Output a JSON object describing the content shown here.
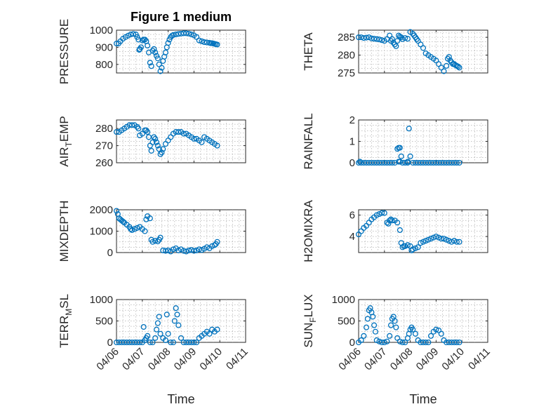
{
  "figure": {
    "title": "Figure 1 medium"
  },
  "chart_data": [
    {
      "type": "scatter",
      "ylabel": "PRESSURE",
      "title": "Figure 1 medium",
      "xlabel": "",
      "xlim": [
        0,
        5
      ],
      "ylim": [
        750,
        1000
      ],
      "yticks": [
        800,
        900,
        1000
      ],
      "xticks": [
        "04/06",
        "04/07",
        "04/08",
        "04/09",
        "04/10",
        "04/11"
      ],
      "show_xticklabels": false,
      "grid": true,
      "color": "#0072BD",
      "x": [
        0.0,
        0.08,
        0.15,
        0.25,
        0.35,
        0.45,
        0.55,
        0.65,
        0.75,
        0.8,
        0.85,
        0.88,
        0.9,
        0.95,
        1.0,
        1.05,
        1.1,
        1.15,
        1.2,
        1.25,
        1.3,
        1.35,
        1.4,
        1.45,
        1.5,
        1.55,
        1.6,
        1.65,
        1.7,
        1.75,
        1.8,
        1.85,
        1.9,
        1.95,
        2.0,
        2.05,
        2.1,
        2.15,
        2.2,
        2.3,
        2.4,
        2.5,
        2.6,
        2.7,
        2.8,
        2.9,
        3.0,
        3.1,
        3.2,
        3.3,
        3.4,
        3.5,
        3.6,
        3.65,
        3.7,
        3.75,
        3.8,
        3.85,
        3.9
      ],
      "y": [
        922,
        922,
        935,
        950,
        960,
        968,
        975,
        978,
        975,
        960,
        945,
        885,
        890,
        900,
        940,
        945,
        945,
        935,
        910,
        870,
        810,
        790,
        880,
        890,
        870,
        850,
        835,
        800,
        760,
        780,
        820,
        845,
        870,
        900,
        925,
        945,
        960,
        968,
        972,
        975,
        978,
        980,
        982,
        982,
        980,
        975,
        970,
        960,
        940,
        935,
        930,
        928,
        926,
        924,
        924,
        922,
        920,
        918,
        916
      ]
    },
    {
      "type": "scatter",
      "ylabel": "THETA",
      "title": "",
      "xlabel": "",
      "xlim": [
        0,
        5
      ],
      "ylim": [
        275,
        287
      ],
      "yticks": [
        275,
        280,
        285
      ],
      "xticks": [
        "04/06",
        "04/07",
        "04/08",
        "04/09",
        "04/10",
        "04/11"
      ],
      "show_xticklabels": false,
      "grid": true,
      "color": "#0072BD",
      "x": [
        0.0,
        0.1,
        0.2,
        0.3,
        0.4,
        0.5,
        0.6,
        0.7,
        0.8,
        0.9,
        1.0,
        1.1,
        1.2,
        1.25,
        1.3,
        1.35,
        1.4,
        1.45,
        1.5,
        1.55,
        1.6,
        1.65,
        1.7,
        1.8,
        1.9,
        2.0,
        2.1,
        2.15,
        2.2,
        2.25,
        2.3,
        2.4,
        2.5,
        2.6,
        2.7,
        2.8,
        2.9,
        3.0,
        3.1,
        3.2,
        3.3,
        3.4,
        3.45,
        3.5,
        3.55,
        3.6,
        3.65,
        3.7,
        3.75,
        3.8,
        3.85,
        3.9
      ],
      "y": [
        285,
        285,
        284.8,
        284.9,
        285,
        284.7,
        284.6,
        284.5,
        284.4,
        284.2,
        284,
        284.5,
        285.5,
        284,
        284.5,
        283.5,
        283,
        282.5,
        284,
        285.5,
        285.2,
        285,
        284.5,
        284.8,
        284.6,
        286.5,
        286,
        285.5,
        285,
        284.5,
        284,
        283,
        282,
        280.5,
        280,
        279.5,
        279,
        278.5,
        277.5,
        276.5,
        275.5,
        277,
        279,
        279.5,
        278.5,
        278,
        277.5,
        277.5,
        277.2,
        277,
        276.8,
        276.5
      ]
    },
    {
      "type": "scatter",
      "ylabel": "AIR_TEMP",
      "title": "",
      "xlabel": "",
      "xlim": [
        0,
        5
      ],
      "ylim": [
        260,
        285
      ],
      "yticks": [
        260,
        270,
        280
      ],
      "xticks": [
        "04/06",
        "04/07",
        "04/08",
        "04/09",
        "04/10",
        "04/11"
      ],
      "show_xticklabels": false,
      "grid": true,
      "color": "#0072BD",
      "x": [
        0.0,
        0.1,
        0.2,
        0.3,
        0.4,
        0.5,
        0.6,
        0.7,
        0.8,
        0.85,
        0.9,
        1.0,
        1.1,
        1.15,
        1.2,
        1.25,
        1.3,
        1.35,
        1.4,
        1.45,
        1.5,
        1.55,
        1.6,
        1.65,
        1.7,
        1.75,
        1.8,
        1.9,
        2.0,
        2.1,
        2.2,
        2.3,
        2.4,
        2.5,
        2.6,
        2.7,
        2.8,
        2.9,
        3.0,
        3.1,
        3.2,
        3.3,
        3.4,
        3.5,
        3.6,
        3.7,
        3.8,
        3.9
      ],
      "y": [
        278,
        278,
        279,
        280,
        281,
        282,
        282,
        282,
        281,
        280,
        276,
        277,
        279,
        279,
        278,
        275,
        270,
        267,
        272,
        275,
        274,
        272,
        270,
        268,
        265,
        266,
        268,
        271,
        273,
        275,
        277,
        278,
        278,
        278,
        277,
        277,
        276,
        275,
        274,
        274,
        273,
        272,
        275,
        274,
        273,
        272,
        271,
        270
      ]
    },
    {
      "type": "scatter",
      "ylabel": "RAINFALL",
      "title": "",
      "xlabel": "",
      "xlim": [
        0,
        5
      ],
      "ylim": [
        0,
        2
      ],
      "yticks": [
        0,
        1,
        2
      ],
      "xticks": [
        "04/06",
        "04/07",
        "04/08",
        "04/09",
        "04/10",
        "04/11"
      ],
      "show_xticklabels": false,
      "grid": true,
      "color": "#0072BD",
      "x": [
        0.0,
        0.1,
        0.2,
        0.3,
        0.4,
        0.5,
        0.6,
        0.7,
        0.8,
        0.9,
        1.0,
        1.1,
        1.2,
        1.3,
        1.4,
        1.5,
        1.55,
        1.6,
        1.65,
        1.7,
        1.8,
        1.9,
        1.95,
        2.0,
        2.1,
        2.2,
        2.3,
        2.4,
        2.5,
        2.6,
        2.7,
        2.8,
        2.9,
        3.0,
        3.1,
        3.2,
        3.3,
        3.4,
        3.5,
        3.6,
        3.7,
        3.8,
        3.9,
        0.05,
        1.9,
        1.6,
        1.55
      ],
      "y": [
        0,
        0,
        0,
        0,
        0,
        0,
        0,
        0,
        0,
        0,
        0,
        0,
        0,
        0,
        0,
        0.65,
        0.7,
        0.7,
        0.3,
        0,
        0,
        0,
        1.6,
        0.3,
        0,
        0,
        0,
        0,
        0,
        0,
        0,
        0,
        0,
        0,
        0,
        0,
        0,
        0,
        0,
        0,
        0,
        0,
        0,
        0.05,
        0.05,
        0.05,
        0.05
      ]
    },
    {
      "type": "scatter",
      "ylabel": "MIXDEPTH",
      "title": "",
      "xlabel": "",
      "xlim": [
        0,
        5
      ],
      "ylim": [
        0,
        2000
      ],
      "yticks": [
        0,
        1000,
        2000
      ],
      "xticks": [
        "04/06",
        "04/07",
        "04/08",
        "04/09",
        "04/10",
        "04/11"
      ],
      "show_xticklabels": false,
      "grid": true,
      "color": "#0072BD",
      "x": [
        0.0,
        0.05,
        0.1,
        0.15,
        0.2,
        0.25,
        0.3,
        0.4,
        0.5,
        0.55,
        0.6,
        0.7,
        0.8,
        0.9,
        1.0,
        1.1,
        1.15,
        1.2,
        1.3,
        1.35,
        1.4,
        1.5,
        1.6,
        1.65,
        1.7,
        1.8,
        1.9,
        2.0,
        2.1,
        2.2,
        2.3,
        2.4,
        2.5,
        2.6,
        2.7,
        2.8,
        2.9,
        3.0,
        3.1,
        3.2,
        3.3,
        3.4,
        3.5,
        3.6,
        3.7,
        3.8,
        3.85,
        3.9
      ],
      "y": [
        1950,
        1800,
        1600,
        1550,
        1500,
        1450,
        1400,
        1300,
        1200,
        1100,
        1050,
        1100,
        1150,
        1200,
        1100,
        1000,
        1550,
        1700,
        1600,
        600,
        500,
        550,
        520,
        600,
        700,
        100,
        80,
        100,
        50,
        150,
        200,
        100,
        150,
        80,
        50,
        100,
        120,
        80,
        100,
        150,
        120,
        180,
        250,
        200,
        300,
        350,
        400,
        500
      ]
    },
    {
      "type": "scatter",
      "ylabel": "H2OMIXRA",
      "title": "",
      "xlabel": "",
      "xlim": [
        0,
        5
      ],
      "ylim": [
        2.5,
        6.5
      ],
      "yticks": [
        4,
        6
      ],
      "xticks": [
        "04/06",
        "04/07",
        "04/08",
        "04/09",
        "04/10",
        "04/11"
      ],
      "show_xticklabels": false,
      "grid": true,
      "color": "#0072BD",
      "x": [
        0.0,
        0.1,
        0.2,
        0.3,
        0.4,
        0.5,
        0.6,
        0.7,
        0.8,
        0.9,
        1.0,
        1.1,
        1.15,
        1.2,
        1.25,
        1.3,
        1.4,
        1.5,
        1.6,
        1.65,
        1.7,
        1.75,
        1.8,
        1.9,
        2.0,
        2.05,
        2.1,
        2.2,
        2.3,
        2.4,
        2.5,
        2.6,
        2.7,
        2.8,
        2.9,
        3.0,
        3.1,
        3.2,
        3.3,
        3.4,
        3.5,
        3.6,
        3.7,
        3.8,
        3.9
      ],
      "y": [
        4.2,
        4.5,
        4.8,
        5.0,
        5.3,
        5.6,
        5.8,
        6.0,
        6.1,
        6.2,
        6.2,
        5.3,
        5.2,
        5.5,
        5.6,
        5.5,
        5.5,
        5.3,
        4.6,
        3.4,
        3.0,
        3.1,
        3.1,
        3.2,
        3.1,
        2.7,
        2.8,
        2.9,
        3.0,
        3.4,
        3.5,
        3.6,
        3.7,
        3.8,
        3.9,
        4.0,
        3.9,
        3.8,
        3.8,
        3.7,
        3.6,
        3.5,
        3.6,
        3.5,
        3.5
      ]
    },
    {
      "type": "scatter",
      "ylabel": "TERR_MSL",
      "title": "",
      "xlabel": "Time",
      "xlim": [
        0,
        5
      ],
      "ylim": [
        0,
        1000
      ],
      "yticks": [
        0,
        500,
        1000
      ],
      "xticks": [
        "04/06",
        "04/07",
        "04/08",
        "04/09",
        "04/10",
        "04/11"
      ],
      "show_xticklabels": true,
      "grid": true,
      "color": "#0072BD",
      "x": [
        0.0,
        0.1,
        0.2,
        0.3,
        0.4,
        0.5,
        0.6,
        0.7,
        0.8,
        0.9,
        1.0,
        1.05,
        1.1,
        1.15,
        1.2,
        1.3,
        1.4,
        1.5,
        1.55,
        1.6,
        1.65,
        1.7,
        1.8,
        1.9,
        1.95,
        2.0,
        2.1,
        2.2,
        2.25,
        2.3,
        2.35,
        2.4,
        2.5,
        2.6,
        2.7,
        2.8,
        2.9,
        3.0,
        3.1,
        3.2,
        3.3,
        3.4,
        3.5,
        3.6,
        3.7,
        3.8,
        3.9
      ],
      "y": [
        0,
        0,
        0,
        0,
        0,
        0,
        0,
        0,
        0,
        0,
        0,
        360,
        50,
        100,
        150,
        0,
        0,
        100,
        300,
        450,
        600,
        200,
        100,
        50,
        650,
        200,
        0,
        0,
        500,
        800,
        650,
        400,
        100,
        0,
        0,
        0,
        0,
        0,
        0,
        100,
        150,
        200,
        250,
        200,
        300,
        250,
        300
      ]
    },
    {
      "type": "scatter",
      "ylabel": "SUN_FLUX",
      "title": "",
      "xlabel": "Time",
      "xlim": [
        0,
        5
      ],
      "ylim": [
        0,
        1000
      ],
      "yticks": [
        0,
        500,
        1000
      ],
      "xticks": [
        "04/06",
        "04/07",
        "04/08",
        "04/09",
        "04/10",
        "04/11"
      ],
      "show_xticklabels": true,
      "grid": true,
      "color": "#0072BD",
      "x": [
        0.0,
        0.1,
        0.2,
        0.3,
        0.35,
        0.4,
        0.45,
        0.5,
        0.55,
        0.6,
        0.65,
        0.7,
        0.8,
        0.9,
        1.0,
        1.1,
        1.2,
        1.25,
        1.3,
        1.35,
        1.4,
        1.45,
        1.5,
        1.6,
        1.7,
        1.8,
        1.9,
        1.95,
        2.0,
        2.05,
        2.1,
        2.2,
        2.3,
        2.4,
        2.5,
        2.6,
        2.7,
        2.8,
        2.9,
        3.0,
        3.1,
        3.2,
        3.3,
        3.4,
        3.5,
        3.6,
        3.7,
        3.8,
        3.9
      ],
      "y": [
        0,
        50,
        150,
        350,
        550,
        750,
        800,
        700,
        600,
        400,
        250,
        50,
        20,
        0,
        0,
        20,
        150,
        400,
        550,
        600,
        500,
        350,
        100,
        20,
        0,
        0,
        100,
        200,
        300,
        350,
        300,
        200,
        50,
        0,
        0,
        0,
        0,
        150,
        250,
        300,
        280,
        200,
        50,
        0,
        0,
        0,
        0,
        0,
        0
      ]
    }
  ]
}
